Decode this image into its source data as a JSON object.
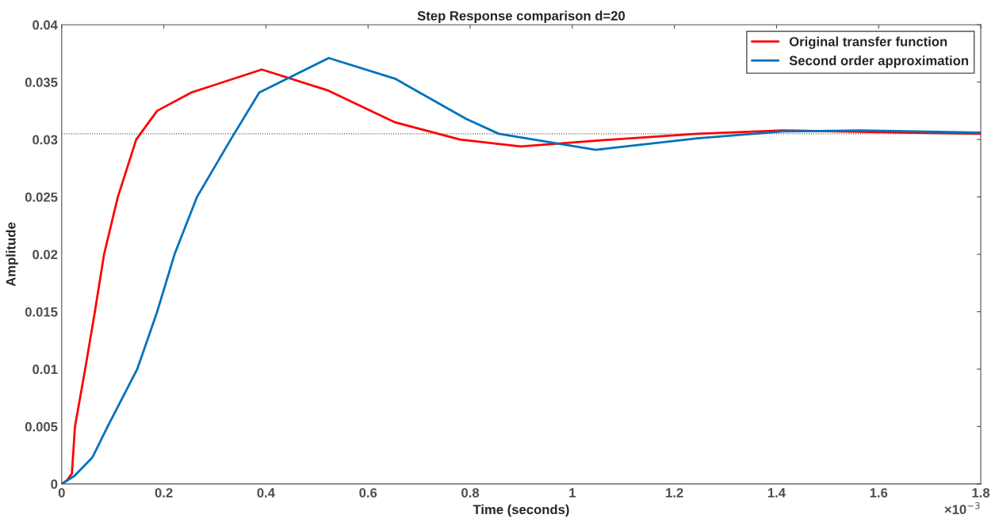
{
  "chart_data": {
    "type": "line",
    "title": "Step Response comparison d=20",
    "xlabel": "Time (seconds)",
    "ylabel": "Amplitude",
    "annotations": [
      "×10$^{−3}$"
    ],
    "xlim": [
      0,
      1.8
    ],
    "xticks": [
      0,
      0.2,
      0.4,
      0.6,
      0.8,
      1,
      1.2,
      1.4,
      1.6,
      1.8
    ],
    "ylim": [
      0,
      0.04
    ],
    "yticks": [
      0,
      0.005,
      0.01,
      0.015,
      0.02,
      0.025,
      0.03,
      0.035,
      0.04
    ],
    "ref_lines": [
      {
        "axis": "y",
        "value": 0.0305,
        "color": "#555555",
        "line_style": "dotted"
      }
    ],
    "legend": "top right",
    "grid": false,
    "line_style": "solid",
    "marker": "none",
    "series": [
      {
        "name": "Original transfer function",
        "color": "#ff0000",
        "x": [
          0,
          0.01,
          0.02,
          0.026,
          0.046,
          0.065,
          0.083,
          0.11,
          0.146,
          0.187,
          0.254,
          0.392,
          0.52,
          0.653,
          0.78,
          0.899,
          1.046,
          1.245,
          1.413,
          1.646,
          1.8
        ],
        "values": [
          0,
          0.0003,
          0.0009,
          0.005,
          0.01,
          0.015,
          0.02,
          0.025,
          0.03,
          0.0325,
          0.0341,
          0.0361,
          0.0343,
          0.0315,
          0.03,
          0.0294,
          0.0299,
          0.0305,
          0.0308,
          0.0306,
          0.0305
        ]
      },
      {
        "name": "Second order approximation",
        "color": "#0072bd",
        "x": [
          0,
          0.025,
          0.06,
          0.09,
          0.148,
          0.187,
          0.221,
          0.265,
          0.331,
          0.387,
          0.523,
          0.653,
          0.792,
          0.856,
          1.046,
          1.245,
          1.413,
          1.565,
          1.8
        ],
        "values": [
          0,
          0.0007,
          0.0023,
          0.005,
          0.01,
          0.015,
          0.02,
          0.025,
          0.03,
          0.0341,
          0.0371,
          0.0353,
          0.0318,
          0.0305,
          0.0291,
          0.0301,
          0.0307,
          0.0308,
          0.0306
        ]
      }
    ]
  }
}
